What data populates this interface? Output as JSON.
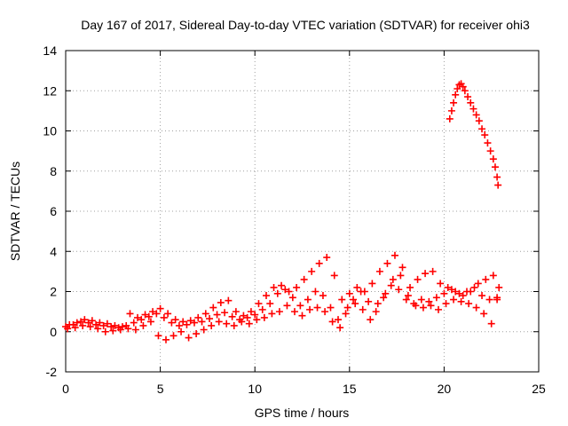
{
  "chart_data": {
    "type": "scatter",
    "title": "Day 167 of 2017, Sidereal Day-to-day VTEC variation (SDTVAR) for receiver ohi3",
    "xlabel": "GPS time / hours",
    "ylabel": "SDTVAR / TECUs",
    "xlim": [
      0,
      25
    ],
    "ylim": [
      -2,
      14
    ],
    "xticks": [
      0,
      5,
      10,
      15,
      20,
      25
    ],
    "yticks": [
      -2,
      0,
      2,
      4,
      6,
      8,
      10,
      12,
      14
    ],
    "xtick_labels": [
      "0",
      "5",
      "10",
      "15",
      "20",
      "25"
    ],
    "ytick_labels": [
      "-2",
      "0",
      "2",
      "4",
      "6",
      "8",
      "10",
      "12",
      "14"
    ],
    "grid": true,
    "marker": "plus",
    "series": [
      {
        "name": "baseline",
        "color": "#ff0000",
        "points": [
          [
            0.0,
            0.25
          ],
          [
            0.4,
            0.35
          ],
          [
            0.8,
            0.5
          ],
          [
            1.2,
            0.45
          ],
          [
            1.6,
            0.35
          ],
          [
            2.0,
            0.3
          ],
          [
            2.4,
            0.25
          ],
          [
            2.8,
            0.2
          ],
          [
            3.2,
            0.3
          ],
          [
            3.6,
            0.45
          ],
          [
            4.0,
            0.6
          ],
          [
            4.4,
            0.75
          ],
          [
            4.8,
            0.9
          ],
          [
            5.2,
            0.7
          ],
          [
            5.6,
            0.45
          ],
          [
            6.0,
            0.3
          ],
          [
            6.4,
            0.35
          ],
          [
            6.8,
            0.45
          ],
          [
            7.2,
            0.5
          ],
          [
            7.6,
            0.65
          ],
          [
            8.0,
            0.85
          ],
          [
            8.4,
            0.95
          ],
          [
            8.8,
            0.75
          ],
          [
            9.2,
            0.6
          ],
          [
            9.6,
            0.7
          ],
          [
            10.0,
            0.85
          ],
          [
            10.4,
            1.1
          ],
          [
            10.8,
            1.4
          ],
          [
            11.2,
            1.9
          ],
          [
            11.6,
            2.1
          ],
          [
            12.0,
            1.7
          ],
          [
            12.4,
            1.3
          ],
          [
            12.8,
            1.6
          ],
          [
            13.2,
            2.0
          ],
          [
            13.6,
            1.8
          ],
          [
            14.0,
            1.2
          ],
          [
            14.4,
            0.6
          ],
          [
            14.8,
            0.9
          ],
          [
            15.2,
            1.6
          ],
          [
            15.6,
            2.0
          ],
          [
            16.0,
            1.5
          ],
          [
            16.4,
            1.0
          ],
          [
            16.8,
            1.7
          ],
          [
            17.2,
            2.3
          ],
          [
            17.6,
            2.1
          ],
          [
            18.0,
            1.6
          ],
          [
            18.4,
            1.4
          ],
          [
            18.8,
            1.6
          ],
          [
            19.2,
            1.5
          ],
          [
            19.6,
            1.7
          ],
          [
            20.0,
            1.9
          ],
          [
            20.4,
            2.1
          ],
          [
            20.8,
            1.9
          ],
          [
            21.2,
            2.0
          ],
          [
            21.6,
            2.2
          ],
          [
            22.0,
            1.8
          ],
          [
            22.4,
            1.6
          ],
          [
            22.8,
            1.7
          ]
        ]
      },
      {
        "name": "upper",
        "color": "#ff0000",
        "points": [
          [
            0.2,
            0.35
          ],
          [
            0.6,
            0.45
          ],
          [
            1.0,
            0.6
          ],
          [
            1.4,
            0.55
          ],
          [
            1.8,
            0.45
          ],
          [
            2.2,
            0.4
          ],
          [
            2.6,
            0.3
          ],
          [
            3.0,
            0.25
          ],
          [
            3.4,
            0.9
          ],
          [
            3.8,
            0.7
          ],
          [
            4.2,
            0.85
          ],
          [
            4.6,
            1.0
          ],
          [
            5.0,
            1.15
          ],
          [
            5.4,
            0.9
          ],
          [
            5.8,
            0.6
          ],
          [
            6.2,
            0.5
          ],
          [
            6.6,
            0.55
          ],
          [
            7.0,
            0.7
          ],
          [
            7.4,
            0.9
          ],
          [
            7.8,
            1.2
          ],
          [
            8.2,
            1.45
          ],
          [
            8.6,
            1.55
          ],
          [
            9.0,
            1.0
          ],
          [
            9.4,
            0.8
          ],
          [
            9.8,
            1.0
          ],
          [
            10.2,
            1.4
          ],
          [
            10.6,
            1.8
          ],
          [
            11.0,
            2.2
          ],
          [
            11.4,
            2.3
          ],
          [
            11.8,
            2.0
          ],
          [
            12.2,
            2.2
          ],
          [
            12.6,
            2.6
          ],
          [
            13.0,
            3.0
          ],
          [
            13.4,
            3.4
          ],
          [
            13.8,
            3.7
          ],
          [
            14.2,
            2.8
          ],
          [
            14.6,
            1.6
          ],
          [
            15.0,
            1.9
          ],
          [
            15.4,
            2.2
          ],
          [
            15.8,
            2.0
          ],
          [
            16.2,
            2.4
          ],
          [
            16.6,
            3.0
          ],
          [
            17.0,
            3.4
          ],
          [
            17.4,
            3.8
          ],
          [
            17.8,
            3.2
          ],
          [
            18.2,
            2.2
          ],
          [
            18.6,
            2.6
          ],
          [
            19.0,
            2.9
          ],
          [
            19.4,
            3.0
          ],
          [
            19.8,
            2.4
          ],
          [
            20.2,
            2.2
          ],
          [
            20.6,
            2.0
          ],
          [
            21.0,
            1.8
          ],
          [
            21.4,
            2.0
          ],
          [
            21.8,
            2.4
          ],
          [
            22.2,
            2.6
          ],
          [
            22.6,
            2.8
          ],
          [
            22.9,
            2.2
          ]
        ]
      },
      {
        "name": "lower",
        "color": "#ff0000",
        "points": [
          [
            0.1,
            0.15
          ],
          [
            0.5,
            0.2
          ],
          [
            0.9,
            0.3
          ],
          [
            1.3,
            0.25
          ],
          [
            1.7,
            0.15
          ],
          [
            2.1,
            0.0
          ],
          [
            2.5,
            0.05
          ],
          [
            2.9,
            0.1
          ],
          [
            3.3,
            0.15
          ],
          [
            3.7,
            0.1
          ],
          [
            4.1,
            0.3
          ],
          [
            4.5,
            0.5
          ],
          [
            4.9,
            -0.2
          ],
          [
            5.3,
            -0.4
          ],
          [
            5.7,
            -0.2
          ],
          [
            6.1,
            0.0
          ],
          [
            6.5,
            -0.3
          ],
          [
            6.9,
            -0.1
          ],
          [
            7.3,
            0.1
          ],
          [
            7.7,
            0.3
          ],
          [
            8.1,
            0.5
          ],
          [
            8.5,
            0.4
          ],
          [
            8.9,
            0.3
          ],
          [
            9.3,
            0.5
          ],
          [
            9.7,
            0.4
          ],
          [
            10.1,
            0.6
          ],
          [
            10.5,
            0.7
          ],
          [
            10.9,
            0.9
          ],
          [
            11.3,
            1.0
          ],
          [
            11.7,
            1.3
          ],
          [
            12.1,
            1.0
          ],
          [
            12.5,
            0.8
          ],
          [
            12.9,
            1.1
          ],
          [
            13.3,
            1.2
          ],
          [
            13.7,
            1.0
          ],
          [
            14.1,
            0.5
          ],
          [
            14.5,
            0.2
          ],
          [
            14.9,
            1.2
          ],
          [
            15.3,
            1.4
          ],
          [
            15.7,
            1.1
          ],
          [
            16.1,
            0.6
          ],
          [
            16.5,
            1.4
          ],
          [
            16.9,
            1.9
          ],
          [
            17.3,
            2.6
          ],
          [
            17.7,
            2.8
          ],
          [
            18.1,
            1.8
          ],
          [
            18.5,
            1.3
          ],
          [
            18.9,
            1.2
          ],
          [
            19.3,
            1.3
          ],
          [
            19.7,
            1.1
          ],
          [
            20.1,
            1.4
          ],
          [
            20.5,
            1.6
          ],
          [
            20.9,
            1.5
          ],
          [
            21.3,
            1.4
          ],
          [
            21.7,
            1.2
          ],
          [
            22.1,
            0.9
          ],
          [
            22.5,
            0.4
          ],
          [
            22.8,
            1.6
          ]
        ]
      },
      {
        "name": "peak",
        "color": "#ff0000",
        "points": [
          [
            20.3,
            10.6
          ],
          [
            20.4,
            11.0
          ],
          [
            20.5,
            11.4
          ],
          [
            20.6,
            11.8
          ],
          [
            20.7,
            12.1
          ],
          [
            20.8,
            12.3
          ],
          [
            20.9,
            12.35
          ],
          [
            21.0,
            12.2
          ],
          [
            21.1,
            12.0
          ],
          [
            21.25,
            11.7
          ],
          [
            21.4,
            11.4
          ],
          [
            21.55,
            11.1
          ],
          [
            21.7,
            10.8
          ],
          [
            21.85,
            10.5
          ],
          [
            22.0,
            10.1
          ],
          [
            22.15,
            9.8
          ],
          [
            22.3,
            9.4
          ],
          [
            22.45,
            9.0
          ],
          [
            22.6,
            8.6
          ],
          [
            22.7,
            8.2
          ],
          [
            22.8,
            7.7
          ],
          [
            22.85,
            7.3
          ]
        ]
      }
    ]
  }
}
